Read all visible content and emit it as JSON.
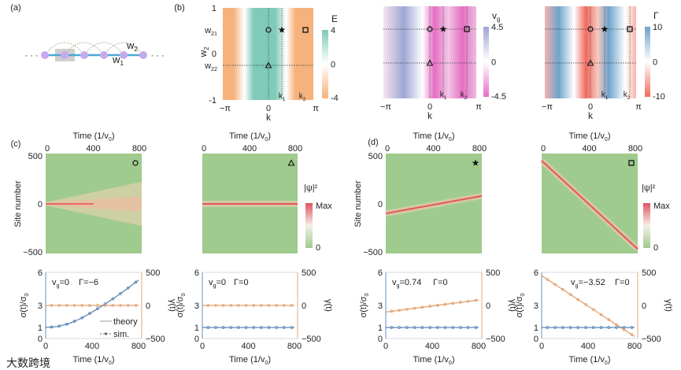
{
  "panel_a": {
    "label": "(a)",
    "ellipsis_left": "· · ·",
    "ellipsis_right": "· · ·",
    "w1": {
      "base": "w",
      "sub": "1"
    },
    "w2": {
      "base": "w",
      "sub": "2"
    }
  },
  "panel_b": {
    "label": "(b)",
    "x_ticks": [
      "−π",
      "0",
      "π"
    ],
    "x_label": "k",
    "y_label": {
      "base": "w",
      "sub": "2"
    },
    "y_ticks": [
      "1",
      "0",
      "-1"
    ],
    "w21": {
      "base": "w",
      "sub": "21"
    },
    "w22": {
      "base": "w",
      "sub": "22"
    },
    "k1": {
      "base": "k",
      "sub": "1"
    },
    "k2": {
      "base": "k",
      "sub": "2"
    },
    "maps": [
      {
        "title": {
          "base": "E",
          "sub": ""
        },
        "ticks": [
          "4",
          "0",
          "-4"
        ],
        "pos_color": "#7fcab9",
        "neg_color": "#f5b27c"
      },
      {
        "title": {
          "base": "v",
          "sub": "g"
        },
        "ticks": [
          "4.5",
          "0",
          "-4.5"
        ],
        "pos_color": "#9ea5d3",
        "neg_color": "#e76ec3"
      },
      {
        "title": {
          "base": "Γ",
          "sub": ""
        },
        "ticks": [
          "10",
          "0",
          "-10"
        ],
        "pos_color": "#6ea3cc",
        "neg_color": "#ef6a5f"
      }
    ]
  },
  "panel_c": {
    "label": "(c)"
  },
  "panel_d": {
    "label": "(d)"
  },
  "common": {
    "time_label": {
      "base": "Time (1/v",
      "sub": "0",
      "end": ")"
    },
    "time_ticks": [
      "0",
      "400",
      "800"
    ],
    "site_label": "Site number",
    "site_ticks": [
      "500",
      "0",
      "−500"
    ],
    "colorbar": {
      "title": "|ψ|²",
      "max": "Max",
      "min": "0"
    },
    "sigma_label": {
      "base": "σ(t)/σ",
      "sub": "0"
    },
    "gamma_label": "γ(t)",
    "sigma_ticks": [
      "6",
      "3",
      "1",
      "0"
    ],
    "gamma_ticks": [
      "500",
      "0",
      "−500"
    ],
    "legend": {
      "theory": "theory",
      "sim": "sim."
    },
    "colors": {
      "background": "#9fcb8e",
      "beam": "#e8545c",
      "sigma": "#5a86b6",
      "gamma": "#e2a271"
    }
  },
  "annotations": [
    {
      "vg": {
        "base": "v",
        "sub": "g",
        "end": "=0"
      },
      "gamma": "Γ=−6"
    },
    {
      "vg": {
        "base": "v",
        "sub": "g",
        "end": "=0"
      },
      "gamma": "Γ=0"
    },
    {
      "vg": {
        "base": "v",
        "sub": "g",
        "end": "=0.74"
      },
      "gamma": "Γ=0"
    },
    {
      "vg": {
        "base": "v",
        "sub": "g",
        "end": "=−3.52"
      },
      "gamma": "Γ=0"
    }
  ],
  "watermark": "大数跨境",
  "chart_data": [
    {
      "type": "heatmap",
      "title": "c-left |ψ|²",
      "marker": "circle",
      "beam_start_site": 0,
      "beam_end_site": 0,
      "spreading": true,
      "xlim": [
        0,
        800
      ],
      "ylim": [
        -500,
        500
      ]
    },
    {
      "type": "heatmap",
      "title": "c-right |ψ|²",
      "marker": "triangle",
      "beam_start_site": 0,
      "beam_end_site": 0,
      "spreading": false,
      "xlim": [
        0,
        800
      ],
      "ylim": [
        -500,
        500
      ]
    },
    {
      "type": "heatmap",
      "title": "d-left |ψ|²",
      "marker": "star",
      "beam_start_site": -100,
      "beam_end_site": 83,
      "spreading": false,
      "xlim": [
        0,
        800
      ],
      "ylim": [
        -500,
        500
      ]
    },
    {
      "type": "heatmap",
      "title": "d-right |ψ|²",
      "marker": "square",
      "beam_start_site": 450,
      "beam_end_site": -470,
      "spreading": false,
      "xlim": [
        0,
        800
      ],
      "ylim": [
        -500,
        500
      ]
    },
    {
      "type": "line",
      "x": [
        0,
        100,
        200,
        300,
        400,
        500,
        600,
        700,
        800
      ],
      "series": [
        {
          "name": "sigma",
          "values": [
            1,
            1.08,
            1.35,
            1.8,
            2.4,
            3.05,
            3.75,
            4.5,
            5.3
          ]
        },
        {
          "name": "gamma",
          "values": [
            0,
            0,
            0,
            0,
            0,
            0,
            0,
            0,
            0
          ]
        }
      ],
      "ylim": [
        0,
        6
      ],
      "y2lim": [
        -500,
        500
      ]
    },
    {
      "type": "line",
      "x": [
        0,
        100,
        200,
        300,
        400,
        500,
        600,
        700,
        800
      ],
      "series": [
        {
          "name": "sigma",
          "values": [
            1,
            1,
            1,
            1,
            1,
            1,
            1,
            1,
            1
          ]
        },
        {
          "name": "gamma",
          "values": [
            0,
            0,
            0,
            0,
            0,
            0,
            0,
            0,
            0
          ]
        }
      ],
      "ylim": [
        0,
        6
      ],
      "y2lim": [
        -500,
        500
      ]
    },
    {
      "type": "line",
      "x": [
        0,
        100,
        200,
        300,
        400,
        500,
        600,
        700,
        800
      ],
      "series": [
        {
          "name": "sigma",
          "values": [
            1,
            1,
            1,
            1,
            1,
            1,
            1,
            1,
            1
          ]
        },
        {
          "name": "gamma",
          "values": [
            -100,
            -77,
            -54,
            -31,
            -8,
            14,
            37,
            60,
            83
          ]
        }
      ],
      "ylim": [
        0,
        6
      ],
      "y2lim": [
        -500,
        500
      ]
    },
    {
      "type": "line",
      "x": [
        0,
        100,
        200,
        300,
        400,
        500,
        600,
        700,
        800
      ],
      "series": [
        {
          "name": "sigma",
          "values": [
            1,
            1,
            1,
            1,
            1,
            1,
            1,
            1,
            1
          ]
        },
        {
          "name": "gamma",
          "values": [
            450,
            335,
            220,
            105,
            -10,
            -125,
            -240,
            -355,
            -470
          ]
        }
      ],
      "ylim": [
        0,
        6
      ],
      "y2lim": [
        -500,
        500
      ]
    }
  ]
}
